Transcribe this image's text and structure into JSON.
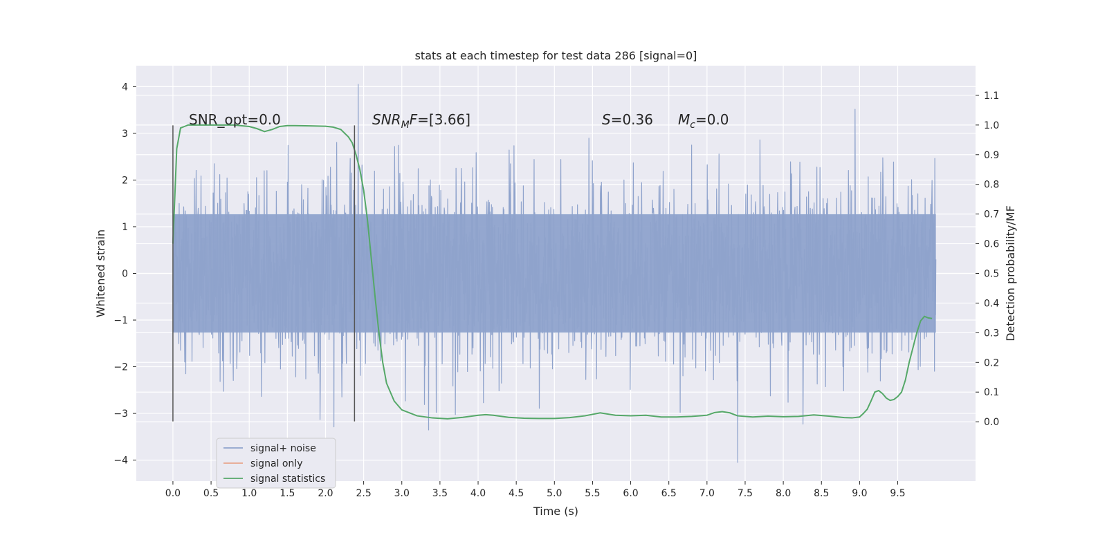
{
  "chart_data": {
    "type": "line",
    "title": "stats at each timestep for test data 286 [signal=0]",
    "xlabel": "Time (s)",
    "ylabel": "Whitened strain",
    "y2label": "Detection probability/MF",
    "xlim": [
      -0.48,
      10.52
    ],
    "ylim": [
      -4.45,
      4.45
    ],
    "y2lim": [
      -0.2,
      1.2
    ],
    "xticks": [
      0.0,
      0.5,
      1.0,
      1.5,
      2.0,
      2.5,
      3.0,
      3.5,
      4.0,
      4.5,
      5.0,
      5.5,
      6.0,
      6.5,
      7.0,
      7.5,
      8.0,
      8.5,
      9.0,
      9.5
    ],
    "xtick_labels": [
      "0.0",
      "0.5",
      "1.0",
      "1.5",
      "2.0",
      "2.5",
      "3.0",
      "3.5",
      "4.0",
      "4.5",
      "5.0",
      "5.5",
      "6.0",
      "6.5",
      "7.0",
      "7.5",
      "8.0",
      "8.5",
      "9.0",
      "9.5"
    ],
    "yticks": [
      -4,
      -3,
      -2,
      -1,
      0,
      1,
      2,
      3,
      4
    ],
    "ytick_labels": [
      "−4",
      "−3",
      "−2",
      "−1",
      "0",
      "1",
      "2",
      "3",
      "4"
    ],
    "y2ticks": [
      0.0,
      0.1,
      0.2,
      0.3,
      0.4,
      0.5,
      0.6,
      0.7,
      0.8,
      0.9,
      1.0,
      1.1
    ],
    "y2tick_labels": [
      "0.0",
      "0.1",
      "0.2",
      "0.3",
      "0.4",
      "0.5",
      "0.6",
      "0.7",
      "0.8",
      "0.9",
      "1.0",
      "1.1"
    ],
    "grid": true,
    "background": "#eaeaf2",
    "series": [
      {
        "name": "signal+ noise",
        "color": "#8fa3cc",
        "kind": "noise",
        "x_range": [
          0.0,
          10.0
        ],
        "band_sigma": 1.0,
        "extrema": {
          "max": 4.05,
          "min": -4.05
        }
      },
      {
        "name": "signal only",
        "color": "#e8a58c",
        "kind": "line",
        "x": [],
        "y": []
      },
      {
        "name": "signal statistics",
        "color": "#55a868",
        "axis": "right",
        "kind": "line",
        "x": [
          0.0,
          0.05,
          0.1,
          0.15,
          0.2,
          0.3,
          0.4,
          0.5,
          0.6,
          0.8,
          1.0,
          1.1,
          1.2,
          1.3,
          1.4,
          1.5,
          1.6,
          1.8,
          2.0,
          2.1,
          2.2,
          2.3,
          2.35,
          2.4,
          2.45,
          2.5,
          2.55,
          2.6,
          2.65,
          2.7,
          2.75,
          2.8,
          2.9,
          3.0,
          3.2,
          3.4,
          3.6,
          3.8,
          4.0,
          4.1,
          4.2,
          4.4,
          4.6,
          4.8,
          5.0,
          5.2,
          5.4,
          5.6,
          5.8,
          6.0,
          6.2,
          6.4,
          6.6,
          6.8,
          7.0,
          7.1,
          7.2,
          7.3,
          7.4,
          7.6,
          7.8,
          8.0,
          8.2,
          8.4,
          8.6,
          8.8,
          8.9,
          9.0,
          9.05,
          9.1,
          9.15,
          9.2,
          9.25,
          9.3,
          9.35,
          9.4,
          9.45,
          9.5,
          9.55,
          9.6,
          9.65,
          9.7,
          9.75,
          9.8,
          9.85,
          9.9,
          9.95
        ],
        "y": [
          0.6,
          0.92,
          0.99,
          0.995,
          1.0,
          1.0,
          1.0,
          1.0,
          1.0,
          1.0,
          0.995,
          0.988,
          0.978,
          0.985,
          0.995,
          0.998,
          0.998,
          0.997,
          0.996,
          0.993,
          0.985,
          0.96,
          0.94,
          0.9,
          0.85,
          0.78,
          0.68,
          0.55,
          0.42,
          0.3,
          0.2,
          0.13,
          0.07,
          0.04,
          0.02,
          0.013,
          0.01,
          0.015,
          0.022,
          0.024,
          0.022,
          0.015,
          0.012,
          0.011,
          0.011,
          0.014,
          0.02,
          0.03,
          0.022,
          0.02,
          0.022,
          0.016,
          0.016,
          0.018,
          0.022,
          0.031,
          0.034,
          0.03,
          0.02,
          0.016,
          0.019,
          0.017,
          0.018,
          0.023,
          0.019,
          0.014,
          0.013,
          0.016,
          0.028,
          0.042,
          0.07,
          0.1,
          0.105,
          0.095,
          0.08,
          0.072,
          0.075,
          0.085,
          0.1,
          0.14,
          0.2,
          0.25,
          0.3,
          0.34,
          0.355,
          0.35,
          0.348
        ]
      }
    ],
    "vlines": [
      {
        "x": 0.0,
        "ymin": -3.17,
        "ymax": 3.17,
        "color": "#555555"
      },
      {
        "x": 2.38,
        "ymin": -3.17,
        "ymax": 3.17,
        "color": "#555555"
      }
    ],
    "annotations": {
      "snr_opt": "SNR_opt=0.0",
      "snr_mf_sym": "SNR",
      "snr_mf_sub": "M",
      "snr_mf_sym2": "F",
      "snr_mf_val": "=[3.66]",
      "s_sym": "S",
      "s_val": "=0.36",
      "mc_sym": "M",
      "mc_sub": "c",
      "mc_val": "=0.0"
    },
    "legend": {
      "position": "lower-left",
      "entries": [
        "signal+ noise",
        "signal only",
        "signal statistics"
      ]
    }
  }
}
